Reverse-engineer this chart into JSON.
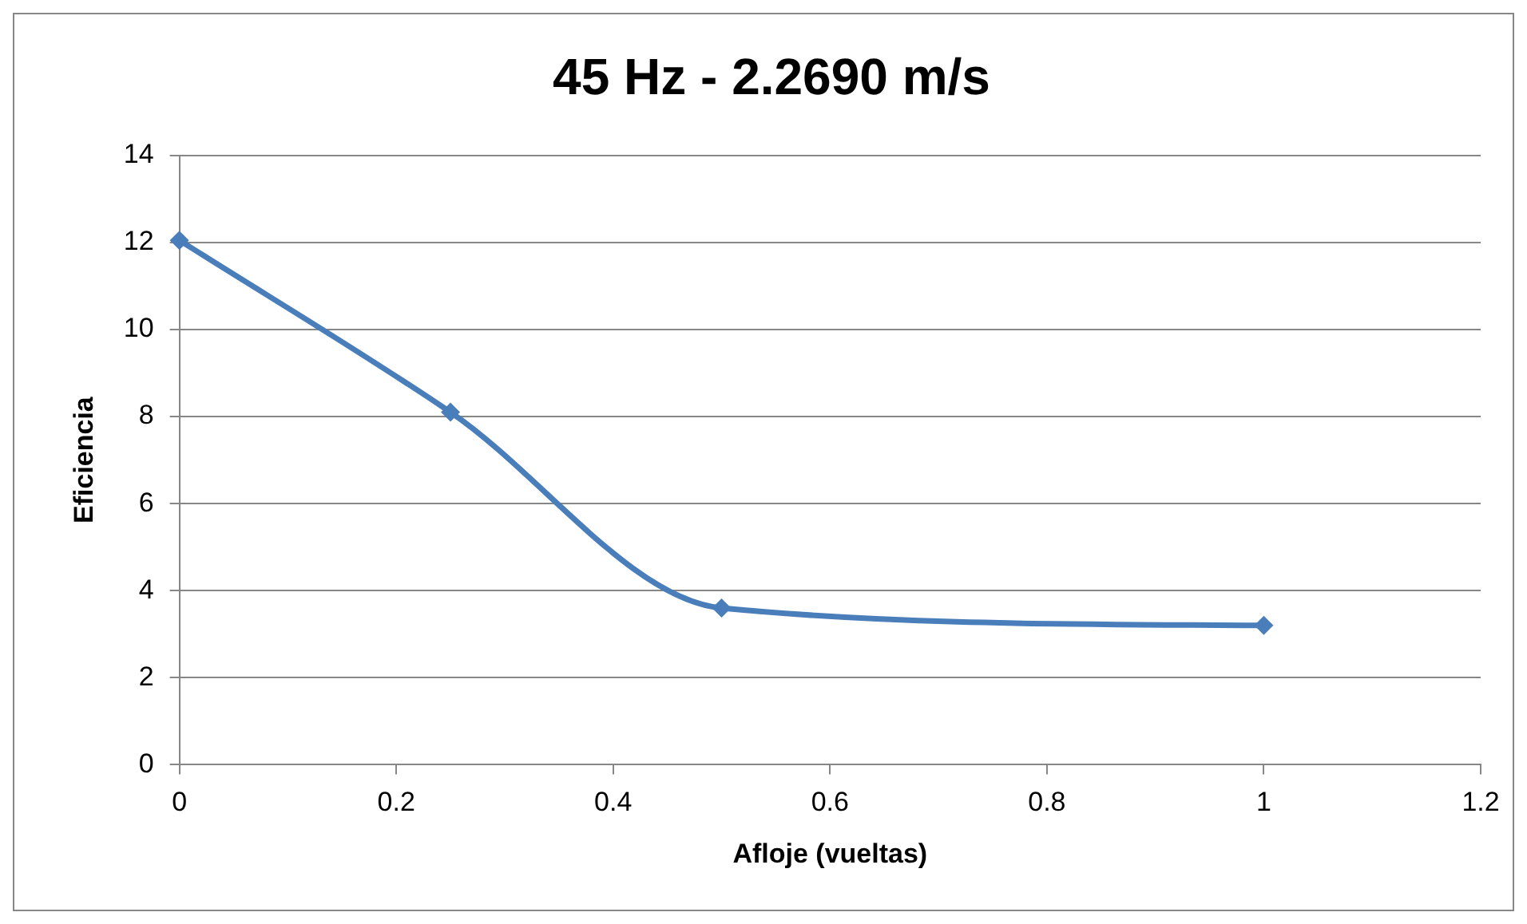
{
  "chart_data": {
    "type": "line",
    "title": "45 Hz - 2.2690 m/s",
    "xlabel": "Afloje (vueltas)",
    "ylabel": "Eficiencia",
    "x": [
      0,
      0.25,
      0.5,
      1
    ],
    "series": [
      {
        "color": "#4a7ebb",
        "values": [
          12.05,
          8.1,
          3.6,
          3.2
        ]
      }
    ],
    "xlim": [
      0,
      1.2
    ],
    "xticks": [
      0,
      0.2,
      0.4,
      0.6,
      0.8,
      1,
      1.2
    ],
    "ylim": [
      0,
      14
    ],
    "yticks": [
      0,
      2,
      4,
      6,
      8,
      10,
      12,
      14
    ],
    "grid": "y",
    "legend": false,
    "marker": "diamond",
    "line_style": "solid"
  }
}
